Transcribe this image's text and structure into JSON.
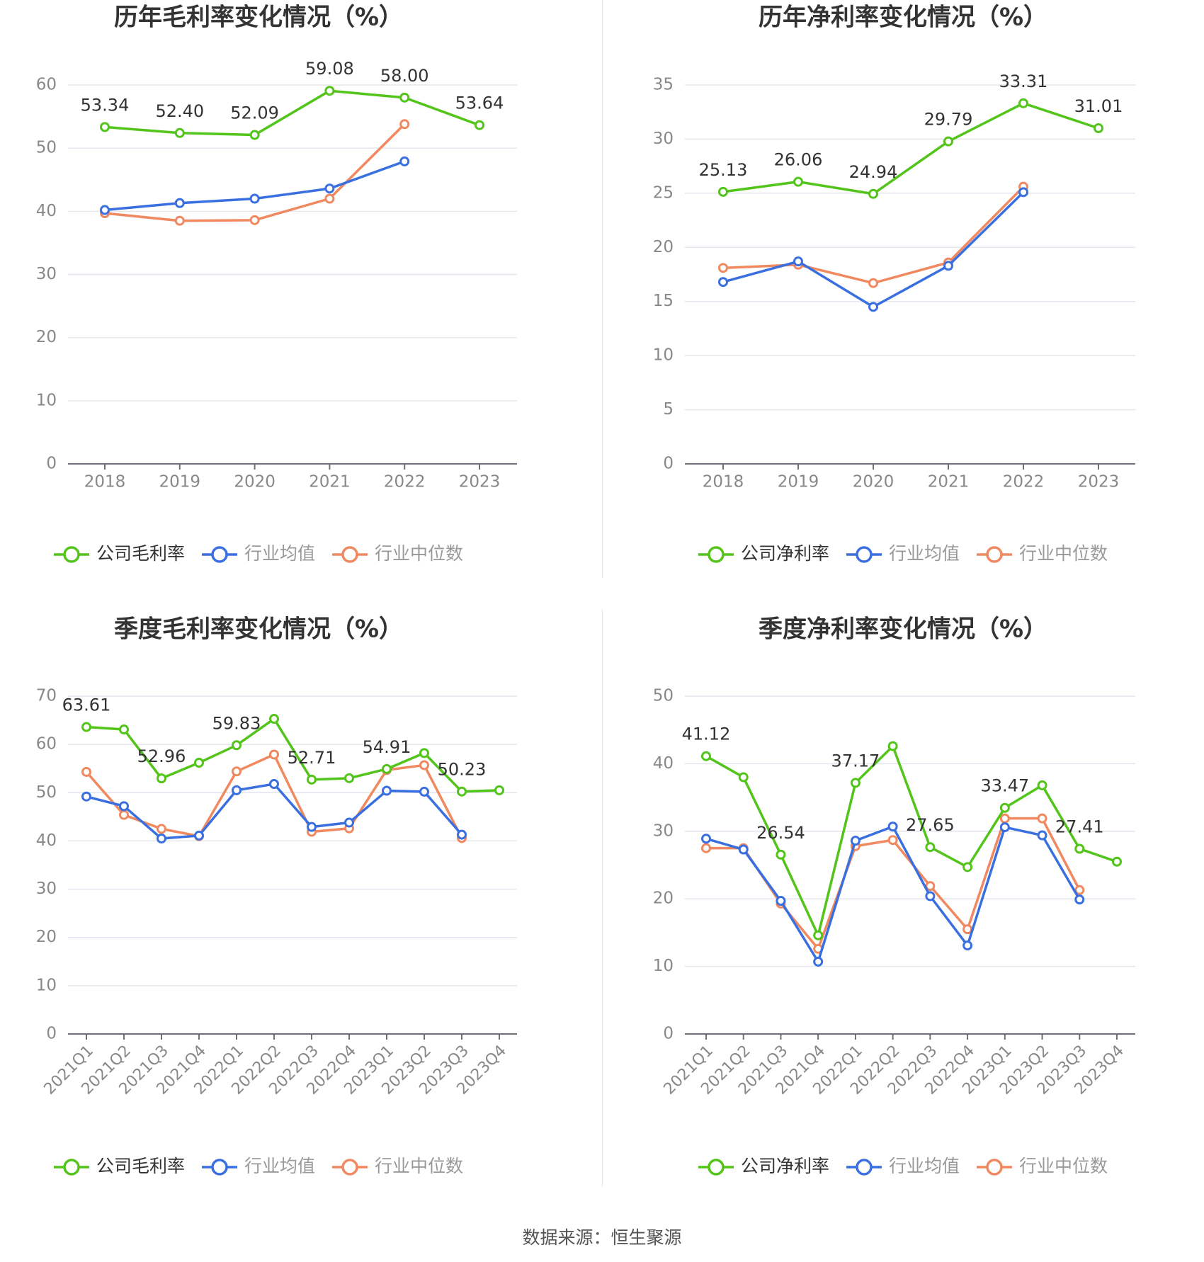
{
  "source": "数据来源：恒生聚源",
  "colors": {
    "company": "#52c41a",
    "avg": "#3a6fe0",
    "median": "#f08860"
  },
  "chart_data": [
    {
      "type": "line",
      "title": "历年毛利率变化情况（%）",
      "categories": [
        "2018",
        "2019",
        "2020",
        "2021",
        "2022",
        "2023"
      ],
      "ylim": [
        0,
        60
      ],
      "yticks": [
        0,
        10,
        20,
        30,
        40,
        50,
        60
      ],
      "grid": true,
      "legend_position": "bottom",
      "series": [
        {
          "name": "公司毛利率",
          "role": "company",
          "values": [
            53.34,
            52.4,
            52.09,
            59.08,
            58.0,
            53.64
          ],
          "labels": [
            "53.34",
            "52.40",
            "52.09",
            "59.08",
            "58.00",
            "53.64"
          ]
        },
        {
          "name": "行业均值",
          "role": "avg",
          "values": [
            40.2,
            41.3,
            42.0,
            43.6,
            47.9,
            null
          ]
        },
        {
          "name": "行业中位数",
          "role": "median",
          "values": [
            39.7,
            38.5,
            38.6,
            42.0,
            53.8,
            null
          ]
        }
      ]
    },
    {
      "type": "line",
      "title": "历年净利率变化情况（%）",
      "categories": [
        "2018",
        "2019",
        "2020",
        "2021",
        "2022",
        "2023"
      ],
      "ylim": [
        0,
        35
      ],
      "yticks": [
        0,
        5,
        10,
        15,
        20,
        25,
        30,
        35
      ],
      "grid": true,
      "legend_position": "bottom",
      "series": [
        {
          "name": "公司净利率",
          "role": "company",
          "values": [
            25.13,
            26.06,
            24.94,
            29.79,
            33.31,
            31.01
          ],
          "labels": [
            "25.13",
            "26.06",
            "24.94",
            "29.79",
            "33.31",
            "31.01"
          ]
        },
        {
          "name": "行业均值",
          "role": "avg",
          "values": [
            16.8,
            18.7,
            14.5,
            18.3,
            25.1,
            null
          ]
        },
        {
          "name": "行业中位数",
          "role": "median",
          "values": [
            18.1,
            18.4,
            16.7,
            18.6,
            25.6,
            null
          ]
        }
      ]
    },
    {
      "type": "line",
      "title": "季度毛利率变化情况（%）",
      "categories": [
        "2021Q1",
        "2021Q2",
        "2021Q3",
        "2021Q4",
        "2022Q1",
        "2022Q2",
        "2022Q3",
        "2022Q4",
        "2023Q1",
        "2023Q2",
        "2023Q3",
        "2023Q4"
      ],
      "ylim": [
        0,
        70
      ],
      "yticks": [
        0,
        10,
        20,
        30,
        40,
        50,
        60,
        70
      ],
      "grid": true,
      "legend_position": "bottom",
      "rotate_x_labels": true,
      "series": [
        {
          "name": "公司毛利率",
          "role": "company",
          "values": [
            63.61,
            63.1,
            52.96,
            56.2,
            59.83,
            65.3,
            52.71,
            53.0,
            54.91,
            58.2,
            50.23,
            50.5
          ],
          "labels": [
            "63.61",
            "",
            "52.96",
            "",
            "59.83",
            "",
            "52.71",
            "",
            "54.91",
            "",
            "50.23",
            ""
          ]
        },
        {
          "name": "行业均值",
          "role": "avg",
          "values": [
            49.2,
            47.2,
            40.5,
            41.1,
            50.5,
            51.8,
            42.9,
            43.8,
            50.4,
            50.2,
            41.3,
            null
          ]
        },
        {
          "name": "行业中位数",
          "role": "median",
          "values": [
            54.3,
            45.4,
            42.5,
            41.0,
            54.4,
            57.9,
            41.9,
            42.6,
            54.7,
            55.7,
            40.6,
            null
          ]
        }
      ]
    },
    {
      "type": "line",
      "title": "季度净利率变化情况（%）",
      "categories": [
        "2021Q1",
        "2021Q2",
        "2021Q3",
        "2021Q4",
        "2022Q1",
        "2022Q2",
        "2022Q3",
        "2022Q4",
        "2023Q1",
        "2023Q2",
        "2023Q3",
        "2023Q4"
      ],
      "ylim": [
        0,
        50
      ],
      "yticks": [
        0,
        10,
        20,
        30,
        40,
        50
      ],
      "grid": true,
      "legend_position": "bottom",
      "rotate_x_labels": true,
      "series": [
        {
          "name": "公司净利率",
          "role": "company",
          "values": [
            41.12,
            38.0,
            26.54,
            14.6,
            37.17,
            42.6,
            27.65,
            24.7,
            33.47,
            36.8,
            27.41,
            25.5
          ],
          "labels": [
            "41.12",
            "",
            "26.54",
            "",
            "37.17",
            "",
            "27.65",
            "",
            "33.47",
            "",
            "27.41",
            ""
          ]
        },
        {
          "name": "行业均值",
          "role": "avg",
          "values": [
            28.9,
            27.3,
            19.7,
            10.7,
            28.6,
            30.7,
            20.4,
            13.1,
            30.6,
            29.4,
            19.9,
            null
          ]
        },
        {
          "name": "行业中位数",
          "role": "median",
          "values": [
            27.5,
            27.5,
            19.3,
            12.6,
            27.8,
            28.7,
            21.9,
            15.5,
            31.9,
            31.9,
            21.3,
            null
          ]
        }
      ]
    }
  ]
}
